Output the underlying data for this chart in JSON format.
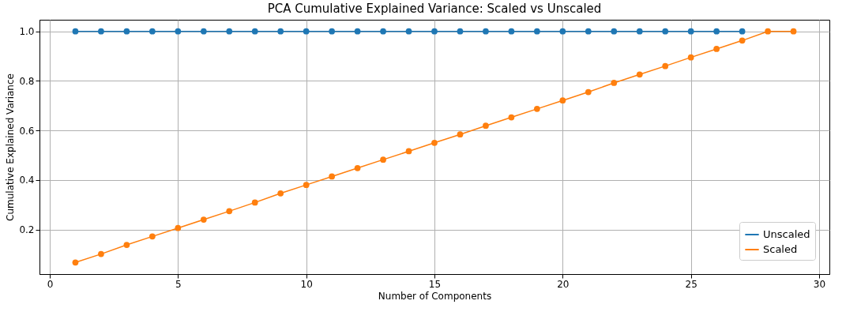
{
  "chart_data": {
    "type": "line",
    "title": "PCA Cumulative Explained Variance: Scaled vs Unscaled",
    "xlabel": "Number of Components",
    "ylabel": "Cumulative Explained Variance",
    "x": [
      1,
      2,
      3,
      4,
      5,
      6,
      7,
      8,
      9,
      10,
      11,
      12,
      13,
      14,
      15,
      16,
      17,
      18,
      19,
      20,
      21,
      22,
      23,
      24,
      25,
      26,
      27,
      28,
      29
    ],
    "series": [
      {
        "name": "Unscaled",
        "color": "#1f77b4",
        "values": [
          1.0,
          1.0,
          1.0,
          1.0,
          1.0,
          1.0,
          1.0,
          1.0,
          1.0,
          1.0,
          1.0,
          1.0,
          1.0,
          1.0,
          1.0,
          1.0,
          1.0,
          1.0,
          1.0,
          1.0,
          1.0,
          1.0,
          1.0,
          1.0,
          1.0,
          1.0,
          1.0,
          null,
          null
        ]
      },
      {
        "name": "Scaled",
        "color": "#ff7f0e",
        "values": [
          0.067,
          0.101,
          0.138,
          0.172,
          0.206,
          0.24,
          0.274,
          0.309,
          0.346,
          0.38,
          0.414,
          0.448,
          0.482,
          0.516,
          0.55,
          0.584,
          0.619,
          0.653,
          0.687,
          0.721,
          0.755,
          0.792,
          0.826,
          0.86,
          0.895,
          0.929,
          0.963,
          1.0,
          1.0
        ]
      }
    ],
    "xlim": [
      -0.4,
      30.4
    ],
    "ylim": [
      0.02,
      1.047
    ],
    "xticks": [
      0,
      5,
      10,
      15,
      20,
      25,
      30
    ],
    "yticks": [
      {
        "value": 0.2,
        "label": "0.2"
      },
      {
        "value": 0.4,
        "label": "0.4"
      },
      {
        "value": 0.6,
        "label": "0.6"
      },
      {
        "value": 0.8,
        "label": "0.8"
      },
      {
        "value": 1.0,
        "label": "1.0"
      }
    ],
    "grid": true,
    "legend": "bottom right",
    "marker": "circle",
    "line_style": "solid"
  }
}
